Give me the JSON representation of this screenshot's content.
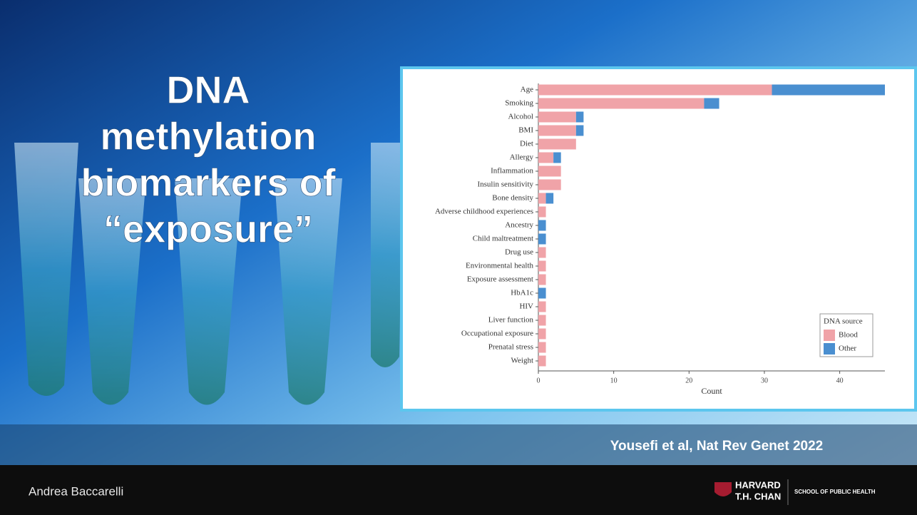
{
  "slide": {
    "title_lines": [
      "DNA",
      "methylation",
      "biomarkers of",
      "“exposure”"
    ],
    "citation": "Yousefi et al, Nat Rev Genet 2022",
    "author": "Andrea Baccarelli",
    "logo": {
      "name": "HARVARD",
      "school": "T.H. CHAN",
      "subtitle": "SCHOOL OF PUBLIC HEALTH"
    }
  },
  "chart_data": {
    "type": "stacked-bar-horizontal",
    "x_label": "Count",
    "legend_title": "DNA source",
    "legend_position": "lower right",
    "categories": [
      "Age",
      "Smoking",
      "Alcohol",
      "BMI",
      "Diet",
      "Allergy",
      "Inflammation",
      "Insulin sensitivity",
      "Bone density",
      "Adverse childhood experiences",
      "Ancestry",
      "Child maltreatment",
      "Drug use",
      "Environmental health",
      "Exposure assessment",
      "HbA1c",
      "HIV",
      "Liver function",
      "Occupational exposure",
      "Prenatal stress",
      "Weight"
    ],
    "series": [
      {
        "name": "Blood",
        "color": "#f0a3a8",
        "values": [
          31,
          22,
          5,
          5,
          5,
          2,
          3,
          3,
          1,
          1,
          0,
          0,
          1,
          1,
          1,
          0,
          1,
          1,
          1,
          1,
          1
        ]
      },
      {
        "name": "Other",
        "color": "#4a8fd0",
        "values": [
          15,
          2,
          1,
          1,
          0,
          1,
          0,
          0,
          1,
          0,
          1,
          1,
          0,
          0,
          0,
          1,
          0,
          0,
          0,
          0,
          0
        ]
      }
    ],
    "xlim": [
      0,
      46
    ],
    "xticks": [
      0,
      10,
      20,
      30,
      40
    ]
  }
}
